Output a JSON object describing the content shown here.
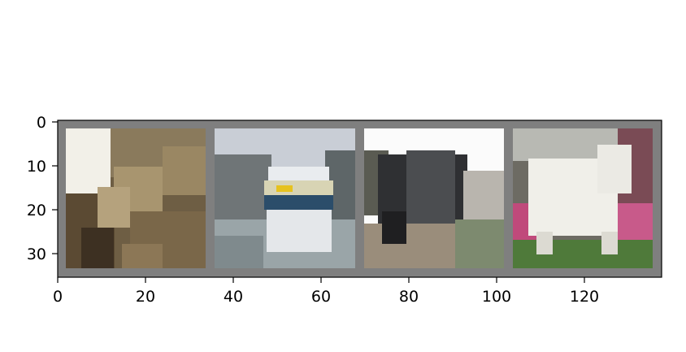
{
  "figure": {
    "kind": "image-grid",
    "background": "#ffffff",
    "grid_border_color": "#7f7f7f",
    "x_ticks": [
      "0",
      "20",
      "40",
      "60",
      "80",
      "100",
      "120"
    ],
    "y_ticks": [
      "0",
      "10",
      "20",
      "30"
    ],
    "xlim": [
      0,
      138
    ],
    "ylim": [
      0,
      36
    ],
    "images": [
      {
        "subject": "cat",
        "palette": [
          "#f2f0e8",
          "#8a7a5c",
          "#5b4a33",
          "#a8956f",
          "#3d3022"
        ]
      },
      {
        "subject": "ship",
        "palette": [
          "#c9ced6",
          "#6f7577",
          "#2b4d6a",
          "#e6c21f",
          "#e9ecef"
        ]
      },
      {
        "subject": "truck",
        "palette": [
          "#fbfbfb",
          "#2f3033",
          "#4b4d50",
          "#9a8d7b",
          "#7d8a6f"
        ]
      },
      {
        "subject": "dog",
        "palette": [
          "#f0efe9",
          "#6d6b63",
          "#c04a7b",
          "#4f7a3a",
          "#dcdad2"
        ]
      }
    ]
  }
}
